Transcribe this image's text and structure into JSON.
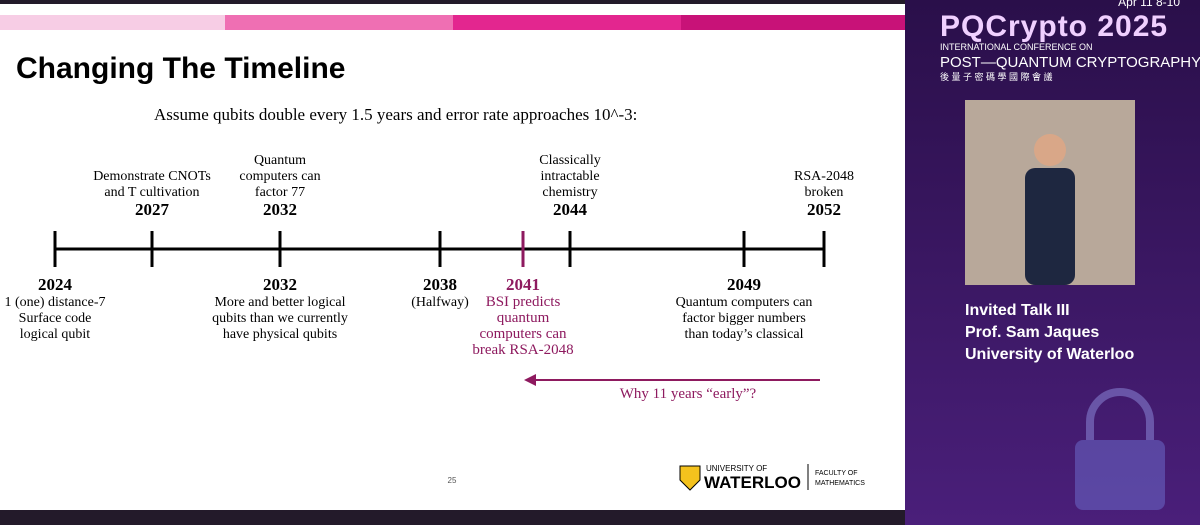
{
  "slide": {
    "title": "Changing The Timeline",
    "subtitle": "Assume qubits double every 1.5 years and error rate approaches  10^-3:",
    "timeline": {
      "highlight_color": "#8e1a5f",
      "events": [
        {
          "year": "2024",
          "side": "below",
          "lines": [
            "1 (one) distance-7",
            "Surface code",
            "logical qubit"
          ]
        },
        {
          "year": "2027",
          "side": "above",
          "lines": [
            "Demonstrate CNOTs",
            "and T cultivation"
          ]
        },
        {
          "year": "2032",
          "side": "above",
          "lines": [
            "Quantum",
            "computers can",
            "factor 77"
          ]
        },
        {
          "year": "2032",
          "side": "below",
          "lines": [
            "More and better logical",
            "qubits than we currently",
            "have physical qubits"
          ]
        },
        {
          "year": "2038",
          "side": "below",
          "lines": [
            "(Halfway)"
          ]
        },
        {
          "year": "2041",
          "side": "below",
          "highlight": true,
          "lines": [
            "BSI predicts",
            "quantum",
            "computers can",
            "break RSA-2048"
          ]
        },
        {
          "year": "2044",
          "side": "above",
          "lines": [
            "Classically",
            "intractable",
            "chemistry"
          ]
        },
        {
          "year": "2049",
          "side": "below",
          "lines": [
            "Quantum computers can",
            "factor bigger numbers",
            "than today’s classical"
          ]
        },
        {
          "year": "2052",
          "side": "above",
          "lines": [
            "RSA-2048",
            "broken"
          ]
        }
      ]
    },
    "arrow_label": "Why 11 years “early”?",
    "page_number": "25",
    "logo": {
      "university_of": "UNIVERSITY OF",
      "waterloo": "WATERLOO",
      "faculty_of": "FACULTY OF",
      "mathematics": "MATHEMATICS"
    }
  },
  "sidebar": {
    "dates": "Apr 11 8-10",
    "conference": "PQCrypto 2025",
    "intl": "INTERNATIONAL CONFERENCE ON",
    "pqc": "POST—QUANTUM CRYPTOGRAPHY",
    "chinese": "後 量 子 密 碼 學 國 際 會 議",
    "talk": "Invited Talk III",
    "speaker": "Prof. Sam Jaques",
    "affiliation": "University of Waterloo"
  }
}
